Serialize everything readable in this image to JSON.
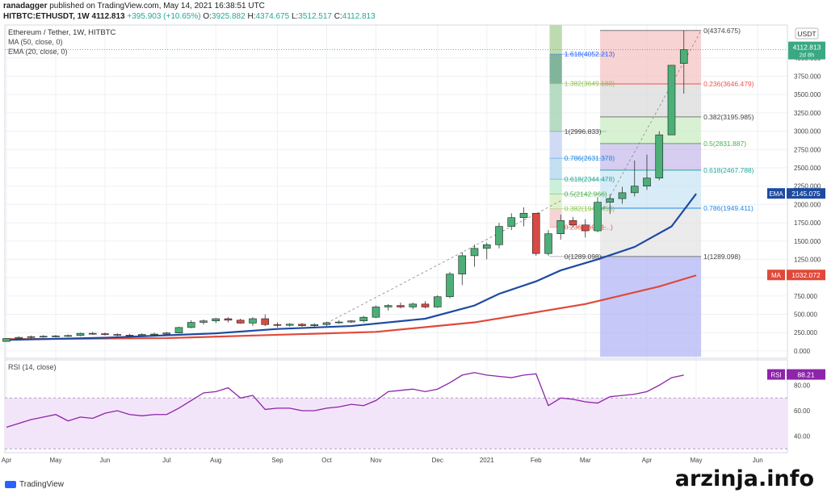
{
  "header": {
    "author": "ranadagger",
    "published": "published on TradingView.com, May 14, 2021 16:38:51 UTC",
    "symbol": "HITBTC:ETHUSDT, 1W",
    "price": "4112.813",
    "change": "+395.903 (+10.65%)",
    "ohlc": {
      "o_label": "O:",
      "o": "3925.882",
      "h_label": "H:",
      "h": "4374.675",
      "l_label": "L:",
      "l": "3512.517",
      "c_label": "C:",
      "c": "4112.813"
    }
  },
  "legend": {
    "title": "Ethereum / Tether, 1W, HITBTC",
    "ma": "MA (50, close, 0)",
    "ema": "EMA (20, close, 0)",
    "rsi": "RSI (14, close)"
  },
  "footer": {
    "brand": "TradingView"
  },
  "watermark": "arzinja.info",
  "colors": {
    "up": "#26a69a",
    "down": "#ef5350",
    "candle_up": "#4caf78",
    "candle_down": "#d94a44",
    "ema": "#1e4aa0",
    "ma": "#e0493a",
    "rsi": "#8e24aa",
    "grid": "#eef0f4"
  },
  "chart_data": {
    "type": "candlestick",
    "currency": "USDT",
    "price_axis": {
      "range": [
        -100,
        4450
      ],
      "ticks": [
        "4000.000",
        "3750.000",
        "3500.000",
        "3250.000",
        "3000.000",
        "2750.000",
        "2500.000",
        "2250.000",
        "2000.000",
        "1750.000",
        "1500.000",
        "1250.000",
        "1000.000",
        "750.000",
        "500.000",
        "250.000",
        "0.000"
      ]
    },
    "tick_values": [
      4000,
      3750,
      3500,
      3250,
      3000,
      2750,
      2500,
      2250,
      2000,
      1750,
      1500,
      1250,
      1000,
      750,
      500,
      250,
      0
    ],
    "x_axis": [
      {
        "label": "Apr",
        "i": 0
      },
      {
        "label": "May",
        "i": 4
      },
      {
        "label": "Jun",
        "i": 8
      },
      {
        "label": "Jul",
        "i": 13
      },
      {
        "label": "Aug",
        "i": 17
      },
      {
        "label": "Sep",
        "i": 22
      },
      {
        "label": "Oct",
        "i": 26
      },
      {
        "label": "Nov",
        "i": 30
      },
      {
        "label": "Dec",
        "i": 35
      },
      {
        "label": "2021",
        "i": 39
      },
      {
        "label": "Feb",
        "i": 43
      },
      {
        "label": "Mar",
        "i": 47
      },
      {
        "label": "Apr",
        "i": 52
      },
      {
        "label": "May",
        "i": 56
      },
      {
        "label": "Jun",
        "i": 61
      }
    ],
    "candles": [
      [
        130,
        175,
        125,
        170
      ],
      [
        170,
        200,
        160,
        185
      ],
      [
        185,
        210,
        170,
        195
      ],
      [
        195,
        215,
        180,
        200
      ],
      [
        200,
        220,
        185,
        205
      ],
      [
        205,
        225,
        190,
        210
      ],
      [
        210,
        250,
        200,
        240
      ],
      [
        240,
        260,
        220,
        235
      ],
      [
        235,
        250,
        210,
        225
      ],
      [
        225,
        240,
        200,
        215
      ],
      [
        215,
        235,
        195,
        210
      ],
      [
        210,
        240,
        200,
        225
      ],
      [
        225,
        250,
        210,
        230
      ],
      [
        230,
        260,
        220,
        245
      ],
      [
        245,
        330,
        240,
        320
      ],
      [
        320,
        420,
        310,
        390
      ],
      [
        390,
        430,
        360,
        410
      ],
      [
        410,
        450,
        380,
        440
      ],
      [
        440,
        460,
        390,
        420
      ],
      [
        420,
        440,
        370,
        380
      ],
      [
        380,
        460,
        340,
        440
      ],
      [
        440,
        500,
        340,
        360
      ],
      [
        360,
        390,
        320,
        350
      ],
      [
        350,
        380,
        330,
        365
      ],
      [
        365,
        380,
        330,
        345
      ],
      [
        345,
        380,
        330,
        360
      ],
      [
        360,
        400,
        340,
        385
      ],
      [
        385,
        420,
        370,
        395
      ],
      [
        395,
        420,
        380,
        410
      ],
      [
        410,
        480,
        390,
        460
      ],
      [
        460,
        620,
        450,
        600
      ],
      [
        600,
        640,
        550,
        620
      ],
      [
        620,
        660,
        580,
        600
      ],
      [
        600,
        660,
        570,
        640
      ],
      [
        640,
        680,
        580,
        600
      ],
      [
        600,
        760,
        590,
        740
      ],
      [
        740,
        1080,
        720,
        1050
      ],
      [
        1050,
        1350,
        900,
        1300
      ],
      [
        1300,
        1450,
        1150,
        1400
      ],
      [
        1400,
        1480,
        1250,
        1450
      ],
      [
        1450,
        1750,
        1400,
        1700
      ],
      [
        1700,
        1880,
        1650,
        1820
      ],
      [
        1820,
        1960,
        1700,
        1880
      ],
      [
        1880,
        1880,
        1300,
        1330
      ],
      [
        1330,
        1650,
        1300,
        1600
      ],
      [
        1600,
        1860,
        1520,
        1780
      ],
      [
        1780,
        1830,
        1690,
        1720
      ],
      [
        1720,
        1800,
        1550,
        1640
      ],
      [
        1640,
        2100,
        1620,
        2030
      ],
      [
        2030,
        2140,
        1870,
        2080
      ],
      [
        2080,
        2240,
        2010,
        2160
      ],
      [
        2160,
        2600,
        2110,
        2250
      ],
      [
        2250,
        2680,
        2200,
        2360
      ],
      [
        2360,
        3000,
        2330,
        2950
      ],
      [
        2950,
        3900,
        2950,
        3900
      ],
      [
        3926,
        4375,
        3513,
        4113
      ]
    ],
    "ema": [
      [
        0,
        150
      ],
      [
        8,
        180
      ],
      [
        17,
        240
      ],
      [
        22,
        300
      ],
      [
        28,
        340
      ],
      [
        34,
        440
      ],
      [
        38,
        620
      ],
      [
        40,
        780
      ],
      [
        43,
        950
      ],
      [
        45,
        1100
      ],
      [
        48,
        1250
      ],
      [
        51,
        1420
      ],
      [
        54,
        1700
      ],
      [
        56,
        2145
      ]
    ],
    "ma": [
      [
        0,
        160
      ],
      [
        13,
        175
      ],
      [
        22,
        220
      ],
      [
        30,
        260
      ],
      [
        38,
        390
      ],
      [
        42,
        500
      ],
      [
        47,
        640
      ],
      [
        50,
        760
      ],
      [
        53,
        880
      ],
      [
        56,
        1032
      ]
    ],
    "fib_left": {
      "range_x": [
        45,
        46
      ],
      "levels": [
        {
          "label": "1.618(4052.213)",
          "value": 4052,
          "color": "#2962ff"
        },
        {
          "label": "1.382(3649.188)",
          "value": 3649,
          "color": "#8bc34a"
        },
        {
          "label": "1(2996.833)",
          "value": 2997,
          "color": "#777777"
        },
        {
          "label": "0.786(2631.378)",
          "value": 2631,
          "color": "#1e88e5"
        },
        {
          "label": "0.618(2344.478)",
          "value": 2344,
          "color": "#26a69a"
        },
        {
          "label": "0.5(2142.966)",
          "value": 2143,
          "color": "#4caf50"
        },
        {
          "label": "0.382(1941.453)",
          "value": 1941,
          "color": "#8bc34a"
        },
        {
          "label": "0.236(1692.1...)",
          "value": 1692,
          "color": "#ef5350"
        },
        {
          "label": "0(1289.098)",
          "value": 1289,
          "color": "#777777"
        }
      ]
    },
    "fib_right": {
      "levels": [
        {
          "label": "0(4374.675)",
          "value": 4375,
          "color": "#777777"
        },
        {
          "label": "0.236(3646.479)",
          "value": 3646,
          "color": "#ef5350"
        },
        {
          "label": "0.382(3195.985)",
          "value": 3196,
          "color": "#777777"
        },
        {
          "label": "0.5(2831.887)",
          "value": 2832,
          "color": "#4caf50"
        },
        {
          "label": "0.618(2467.788)",
          "value": 2468,
          "color": "#26a69a"
        },
        {
          "label": "0.786(1949.411)",
          "value": 1949,
          "color": "#1e88e5"
        },
        {
          "label": "1(1289.098)",
          "value": 1289,
          "color": "#777777"
        }
      ]
    },
    "badges": {
      "price": {
        "value": "4112.813",
        "sub": "2d 8h"
      },
      "ema": {
        "name": "EMA",
        "value": "2145.075"
      },
      "ma": {
        "name": "MA",
        "value": "1032.072"
      },
      "rsi": {
        "name": "RSI",
        "value": "88.21"
      }
    },
    "rsi": {
      "ticks": [
        "80.00",
        "60.00",
        "40.00"
      ],
      "tick_values": [
        80,
        60,
        40
      ],
      "range": [
        27,
        100
      ],
      "bands": [
        70,
        30
      ],
      "values": [
        47,
        50,
        53,
        55,
        57,
        52,
        55,
        54,
        58,
        60,
        57,
        56,
        57,
        57,
        62,
        68,
        74,
        75,
        78,
        70,
        72,
        61,
        62,
        62,
        60,
        60,
        62,
        63,
        65,
        64,
        68,
        75,
        76,
        77,
        75,
        77,
        82,
        88,
        90,
        88,
        87,
        86,
        88,
        89,
        64,
        70,
        69,
        67,
        66,
        71,
        72,
        73,
        75,
        80,
        86,
        88
      ]
    }
  }
}
